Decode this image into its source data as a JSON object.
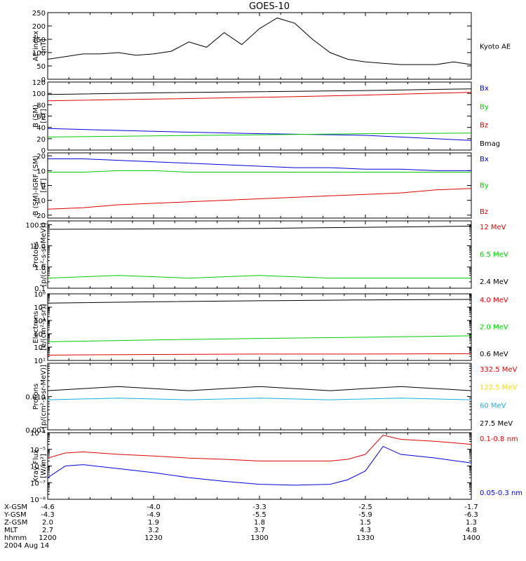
{
  "title": "GOES-10",
  "colors": {
    "black": "#000000",
    "red": "#dd0000",
    "green": "#00cc00",
    "blue": "#0000dd",
    "yellow": "#f5d800",
    "cyan": "#10b0e0"
  },
  "panels": [
    {
      "id": "ae",
      "ylabel": [
        "AE index",
        "[nT]"
      ],
      "scale": "linear",
      "ylim": [
        0,
        250
      ],
      "ticks": [
        {
          "v": 0,
          "t": "0"
        },
        {
          "v": 50,
          "t": "50"
        },
        {
          "v": 100,
          "t": "100"
        },
        {
          "v": 150,
          "t": "150"
        },
        {
          "v": 200,
          "t": "200"
        },
        {
          "v": 250,
          "t": "250"
        }
      ],
      "legend": [
        {
          "text": "Kyoto AE",
          "color": "black"
        }
      ]
    },
    {
      "id": "bsm",
      "ylabel": [
        "B (SM)",
        "[nT]"
      ],
      "scale": "linear",
      "ylim": [
        0,
        120
      ],
      "ticks": [
        {
          "v": 0,
          "t": "0"
        },
        {
          "v": 20,
          "t": "20"
        },
        {
          "v": 40,
          "t": "40"
        },
        {
          "v": 60,
          "t": "60"
        },
        {
          "v": 80,
          "t": "80"
        },
        {
          "v": 100,
          "t": "100"
        },
        {
          "v": 120,
          "t": "120"
        }
      ],
      "legend": [
        {
          "text": "Bx",
          "color": "blue"
        },
        {
          "text": "By",
          "color": "green"
        },
        {
          "text": "Bz",
          "color": "red"
        },
        {
          "text": "Bmag",
          "color": "black"
        }
      ]
    },
    {
      "id": "bigrf",
      "ylabel": [
        "B (SM)-IGRF (SM)",
        "[nT]"
      ],
      "scale": "linear",
      "ylim": [
        -22,
        22
      ],
      "ticks": [
        {
          "v": -20,
          "t": "-20"
        },
        {
          "v": -10,
          "t": "-10"
        },
        {
          "v": 0,
          "t": "0"
        },
        {
          "v": 10,
          "t": "10"
        },
        {
          "v": 20,
          "t": "20"
        }
      ],
      "legend": [
        {
          "text": "Bx",
          "color": "blue"
        },
        {
          "text": "By",
          "color": "green"
        },
        {
          "text": "Bz",
          "color": "red"
        }
      ]
    },
    {
      "id": "protons_hi",
      "ylabel": [
        "Protons",
        "[p/(cm²-s-sr-MeV)]"
      ],
      "scale": "log",
      "ylim": [
        0.1,
        150
      ],
      "ticks": [
        {
          "v": 0.1,
          "t": "0.1"
        },
        {
          "v": 1,
          "t": "1.0"
        },
        {
          "v": 10,
          "t": "10.0"
        },
        {
          "v": 100,
          "t": "100.0"
        }
      ],
      "legend": [
        {
          "text": "12 MeV",
          "color": "red"
        },
        {
          "text": "6.5 MeV",
          "color": "green"
        },
        {
          "text": "2.4 MeV",
          "color": "black"
        }
      ]
    },
    {
      "id": "electrons",
      "ylabel": [
        "Electrons",
        "[e/(cm²-s-sr)]"
      ],
      "scale": "log",
      "ylim": [
        10,
        1000000
      ],
      "ticks": [
        {
          "v": 10,
          "t": "10¹"
        },
        {
          "v": 100,
          "t": "10²"
        },
        {
          "v": 1000,
          "t": "10³"
        },
        {
          "v": 10000,
          "t": "10⁴"
        },
        {
          "v": 100000,
          "t": "10⁵"
        },
        {
          "v": 1000000,
          "t": "10⁶"
        }
      ],
      "legend": [
        {
          "text": "4.0 MeV",
          "color": "red"
        },
        {
          "text": "2.0 MeV",
          "color": "green"
        },
        {
          "text": "0.6 MeV",
          "color": "black"
        }
      ]
    },
    {
      "id": "protons_lo",
      "ylabel": [
        "Protons",
        "[p/(cm²-s-sr-MeV)]"
      ],
      "scale": "log",
      "ylim": [
        0.001,
        0.1
      ],
      "ticks": [
        {
          "v": 0.001,
          "t": "0.001"
        },
        {
          "v": 0.01,
          "t": "0.010"
        }
      ],
      "legend": [
        {
          "text": "332.5 MeV",
          "color": "red"
        },
        {
          "text": "122.5 MeV",
          "color": "yellow"
        },
        {
          "text": "60 MeV",
          "color": "cyan"
        },
        {
          "text": "27.5 MeV",
          "color": "black"
        }
      ]
    },
    {
      "id": "xray",
      "ylabel": [
        "Xray  Flux",
        "[W/m²]"
      ],
      "scale": "log",
      "ylim": [
        1e-08,
        0.0001
      ],
      "ticks": [
        {
          "v": 1e-08,
          "t": "10⁻⁸"
        },
        {
          "v": 1e-07,
          "t": "10⁻⁷"
        },
        {
          "v": 1e-06,
          "t": "10⁻⁶"
        },
        {
          "v": 1e-05,
          "t": "10⁻⁵"
        },
        {
          "v": 0.0001,
          "t": "10⁻⁴"
        }
      ],
      "legend": [
        {
          "text": "0.1-0.8 nm",
          "color": "red"
        },
        {
          "text": "0.05-0.3 nm",
          "color": "blue"
        }
      ]
    }
  ],
  "xaxis": {
    "row_labels": [
      "X-GSM",
      "Y-GSM",
      "Z-GSM",
      "MLT",
      "hhmm"
    ],
    "columns": [
      {
        "t": 1200,
        "values": [
          "-4.6",
          "-4.3",
          "2.0",
          "2.7",
          "1200"
        ]
      },
      {
        "t": 1230,
        "values": [
          "-4.0",
          "-4.9",
          "1.9",
          "3.2",
          "1230"
        ]
      },
      {
        "t": 1300,
        "values": [
          "-3.3",
          "-5.5",
          "1.8",
          "3.7",
          "1300"
        ]
      },
      {
        "t": 1330,
        "values": [
          "-2.5",
          "-5.9",
          "1.5",
          "4.3",
          "1330"
        ]
      },
      {
        "t": 1400,
        "values": [
          "-1.7",
          "-6.3",
          "1.3",
          "4.8",
          "1400"
        ]
      }
    ],
    "date": "2004 Aug 14"
  },
  "chart_data": [
    {
      "type": "line",
      "panel": "ae",
      "x_unit": "minutes after 1200 UT",
      "x": [
        0,
        5,
        10,
        15,
        20,
        25,
        30,
        35,
        40,
        45,
        50,
        55,
        60,
        65,
        70,
        75,
        80,
        85,
        90,
        95,
        100,
        105,
        110,
        115,
        120
      ],
      "series": [
        {
          "name": "Kyoto AE",
          "color": "black",
          "values": [
            75,
            85,
            95,
            95,
            100,
            90,
            95,
            105,
            140,
            120,
            175,
            130,
            190,
            230,
            210,
            150,
            100,
            75,
            65,
            60,
            55,
            55,
            55,
            65,
            55
          ]
        }
      ]
    },
    {
      "type": "line",
      "panel": "bsm",
      "x": [
        0,
        30,
        60,
        90,
        120
      ],
      "series": [
        {
          "name": "Bmag",
          "color": "black",
          "values": [
            98,
            101,
            103,
            105,
            108
          ]
        },
        {
          "name": "Bz",
          "color": "red",
          "values": [
            87,
            90,
            93,
            97,
            102
          ]
        },
        {
          "name": "Bx",
          "color": "blue",
          "values": [
            38,
            33,
            29,
            26,
            17
          ]
        },
        {
          "name": "By",
          "color": "green",
          "values": [
            23,
            25,
            27,
            29,
            30
          ]
        }
      ]
    },
    {
      "type": "line",
      "panel": "bigrf",
      "x": [
        0,
        10,
        20,
        30,
        40,
        50,
        60,
        70,
        80,
        90,
        100,
        110,
        120
      ],
      "series": [
        {
          "name": "Bx",
          "color": "blue",
          "values": [
            18,
            18,
            17,
            16,
            15,
            14,
            13,
            12,
            12,
            11,
            11,
            10,
            10
          ]
        },
        {
          "name": "By",
          "color": "green",
          "values": [
            9,
            9,
            10,
            10,
            9,
            9,
            9,
            9,
            9,
            9,
            9,
            9,
            9
          ]
        },
        {
          "name": "Bz",
          "color": "red",
          "values": [
            -16,
            -15,
            -13,
            -12,
            -11,
            -10,
            -9,
            -8,
            -7,
            -6,
            -5,
            -3,
            -2
          ]
        }
      ]
    },
    {
      "type": "line",
      "panel": "protons_hi",
      "x": [
        0,
        20,
        40,
        60,
        80,
        100,
        120
      ],
      "series": [
        {
          "name": "2.4 MeV",
          "color": "black",
          "values": [
            60,
            62,
            64,
            66,
            72,
            78,
            85
          ]
        },
        {
          "name": "6.5 MeV",
          "color": "green",
          "values": [
            0.3,
            0.4,
            0.3,
            0.4,
            0.3,
            0.3,
            0.3
          ]
        }
      ]
    },
    {
      "type": "line",
      "panel": "electrons",
      "x": [
        0,
        30,
        60,
        90,
        120
      ],
      "series": [
        {
          "name": "0.6 MeV",
          "color": "black",
          "values": [
            200000,
            250000,
            300000,
            350000,
            380000
          ]
        },
        {
          "name": "2.0 MeV",
          "color": "green",
          "values": [
            250,
            350,
            450,
            550,
            700
          ]
        },
        {
          "name": "4.0 MeV",
          "color": "red",
          "values": [
            25,
            28,
            30,
            30,
            32
          ]
        }
      ]
    },
    {
      "type": "line",
      "panel": "protons_lo",
      "x": [
        0,
        20,
        40,
        60,
        80,
        100,
        120
      ],
      "series": [
        {
          "name": "27.5 MeV",
          "color": "black",
          "values": [
            0.015,
            0.02,
            0.015,
            0.02,
            0.015,
            0.02,
            0.015
          ]
        },
        {
          "name": "60 MeV",
          "color": "cyan",
          "values": [
            0.008,
            0.009,
            0.008,
            0.009,
            0.008,
            0.009,
            0.008
          ]
        }
      ]
    },
    {
      "type": "line",
      "panel": "xray",
      "x": [
        0,
        5,
        10,
        20,
        30,
        40,
        50,
        60,
        70,
        80,
        85,
        90,
        95,
        100,
        110,
        120
      ],
      "series": [
        {
          "name": "0.1-0.8 nm",
          "color": "red",
          "values": [
            3e-06,
            6e-06,
            7e-06,
            5e-06,
            4e-06,
            3e-06,
            2.5e-06,
            2e-06,
            2e-06,
            2e-06,
            2.5e-06,
            5e-06,
            7e-05,
            4e-05,
            3e-05,
            2e-05
          ]
        },
        {
          "name": "0.05-0.3 nm",
          "color": "blue",
          "values": [
            2e-07,
            1e-06,
            1.2e-06,
            7e-07,
            4e-07,
            2e-07,
            1.2e-07,
            8e-08,
            7e-08,
            8e-08,
            1.5e-07,
            5e-07,
            1.5e-05,
            5e-06,
            3e-06,
            1.5e-06
          ]
        }
      ]
    }
  ]
}
